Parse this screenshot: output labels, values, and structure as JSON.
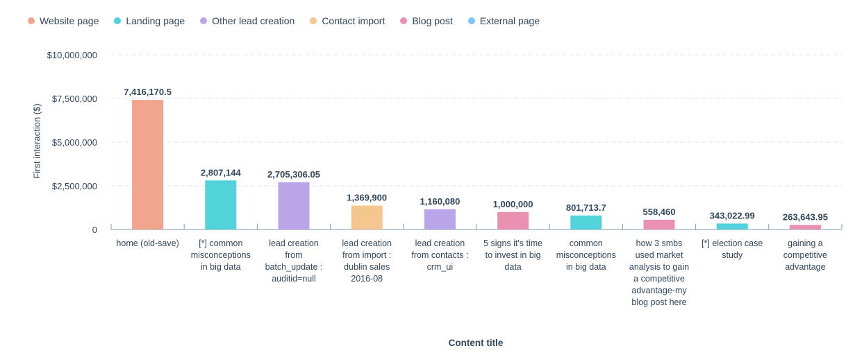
{
  "chart_data": {
    "type": "bar",
    "xlabel": "Content title",
    "ylabel": "First interaction ($)",
    "ylim": [
      0,
      10000000
    ],
    "yticks": [
      {
        "v": 0,
        "label": "0"
      },
      {
        "v": 2500000,
        "label": "$2,500,000"
      },
      {
        "v": 5000000,
        "label": "$5,000,000"
      },
      {
        "v": 7500000,
        "label": "$7,500,000"
      },
      {
        "v": 10000000,
        "label": "$10,000,000"
      }
    ],
    "grid": true,
    "legend_position": "top-left",
    "legend": [
      {
        "name": "Website page",
        "color": "#f2a58e"
      },
      {
        "name": "Landing page",
        "color": "#51d3d9"
      },
      {
        "name": "Other lead creation",
        "color": "#b9a5e8"
      },
      {
        "name": "Contact import",
        "color": "#f5c78e"
      },
      {
        "name": "Blog post",
        "color": "#ea90b1"
      },
      {
        "name": "External page",
        "color": "#81c1fd"
      }
    ],
    "bars": [
      {
        "category": "home (old-save)",
        "value": 7416170.5,
        "label": "7,416,170.5",
        "type": "Website page"
      },
      {
        "category": "[*] common misconceptions in big data",
        "value": 2807144,
        "label": "2,807,144",
        "type": "Landing page"
      },
      {
        "category": "lead creation from batch_update : auditid=null",
        "value": 2705306.05,
        "label": "2,705,306.05",
        "type": "Other lead creation"
      },
      {
        "category": "lead creation from import : dublin sales 2016-08",
        "value": 1369900,
        "label": "1,369,900",
        "type": "Contact import"
      },
      {
        "category": "lead creation from contacts : crm_ui",
        "value": 1160080,
        "label": "1,160,080",
        "type": "Other lead creation"
      },
      {
        "category": "5 signs it's time to invest in big data",
        "value": 1000000,
        "label": "1,000,000",
        "type": "Blog post"
      },
      {
        "category": "common misconceptions in big data",
        "value": 801713.7,
        "label": "801,713.7",
        "type": "Landing page"
      },
      {
        "category": "how 3 smbs used market analysis to gain a competitive advantage-my blog post here",
        "value": 558460,
        "label": "558,460",
        "type": "Blog post"
      },
      {
        "category": "[*] election case study",
        "value": 343022.99,
        "label": "343,022.99",
        "type": "Landing page"
      },
      {
        "category": "gaining a competitive advantage",
        "value": 263643.95,
        "label": "263,643.95",
        "type": "Blog post"
      }
    ]
  }
}
